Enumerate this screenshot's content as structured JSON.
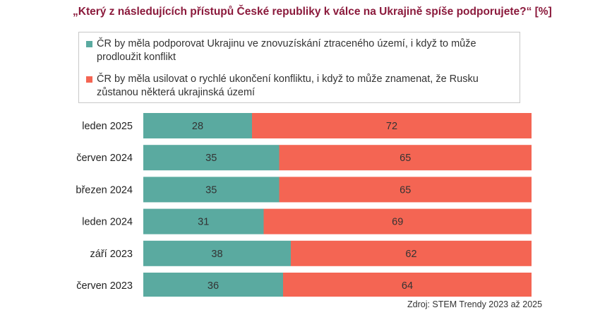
{
  "title": "„Který z následujících přístupů České republiky k válce na Ukrajině spíše podporujete?“ [%]",
  "source": "Zdroj: STEM Trendy 2023 až 2025",
  "colors": {
    "support_ukraine": "#5aaaa0",
    "end_conflict": "#f46553",
    "label_text": "#333333"
  },
  "chart_data": {
    "type": "bar",
    "orientation": "horizontal",
    "stacked": true,
    "categories": [
      "leden 2025",
      "červen 2024",
      "březen 2024",
      "leden 2024",
      "září 2023",
      "červen 2023"
    ],
    "series": [
      {
        "name": "ČR by měla podporovat Ukrajinu ve znovuzískání ztraceného území, i když to může prodloužit konflikt",
        "values": [
          28,
          35,
          35,
          31,
          38,
          36
        ]
      },
      {
        "name": "ČR by měla usilovat o rychlé ukončení konfliktu, i když to může znamenat, že Rusku zůstanou některá ukrajinská území",
        "values": [
          72,
          65,
          65,
          69,
          62,
          64
        ]
      }
    ],
    "xlim": [
      0,
      100
    ],
    "legend": "top",
    "grid": false
  }
}
